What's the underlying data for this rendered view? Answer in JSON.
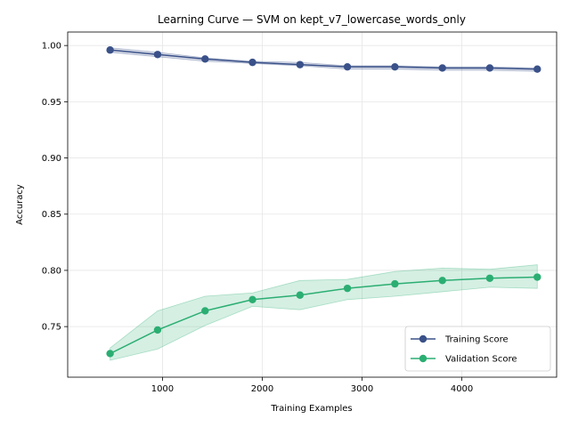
{
  "chart_data": {
    "type": "line",
    "title": "Learning Curve — SVM on kept_v7_lowercase_words_only",
    "xlabel": "Training Examples",
    "ylabel": "Accuracy",
    "xlim": [
      50,
      4950
    ],
    "ylim": [
      0.705,
      1.012
    ],
    "xticks": [
      1000,
      2000,
      3000,
      4000
    ],
    "yticks": [
      0.75,
      0.8,
      0.85,
      0.9,
      0.95,
      1.0
    ],
    "ytick_labels": [
      "0.75",
      "0.80",
      "0.85",
      "0.90",
      "0.95",
      "1.00"
    ],
    "grid": true,
    "legend_position": "lower-right",
    "x": [
      475,
      951,
      1427,
      1902,
      2378,
      2853,
      3329,
      3805,
      4280,
      4756
    ],
    "series": [
      {
        "name": "Training Score",
        "color": "#3a5189",
        "values": [
          0.996,
          0.992,
          0.988,
          0.985,
          0.983,
          0.981,
          0.981,
          0.98,
          0.98,
          0.979
        ],
        "band_low": [
          0.994,
          0.99,
          0.986,
          0.984,
          0.982,
          0.979,
          0.979,
          0.978,
          0.978,
          0.977
        ],
        "band_high": [
          0.998,
          0.994,
          0.989,
          0.986,
          0.985,
          0.982,
          0.982,
          0.981,
          0.981,
          0.98
        ]
      },
      {
        "name": "Validation Score",
        "color": "#2bae72",
        "values": [
          0.726,
          0.747,
          0.764,
          0.774,
          0.778,
          0.784,
          0.788,
          0.791,
          0.793,
          0.794
        ],
        "band_low": [
          0.72,
          0.73,
          0.751,
          0.768,
          0.765,
          0.774,
          0.777,
          0.781,
          0.785,
          0.784
        ],
        "band_high": [
          0.731,
          0.764,
          0.777,
          0.78,
          0.791,
          0.792,
          0.799,
          0.802,
          0.801,
          0.805
        ]
      }
    ]
  }
}
